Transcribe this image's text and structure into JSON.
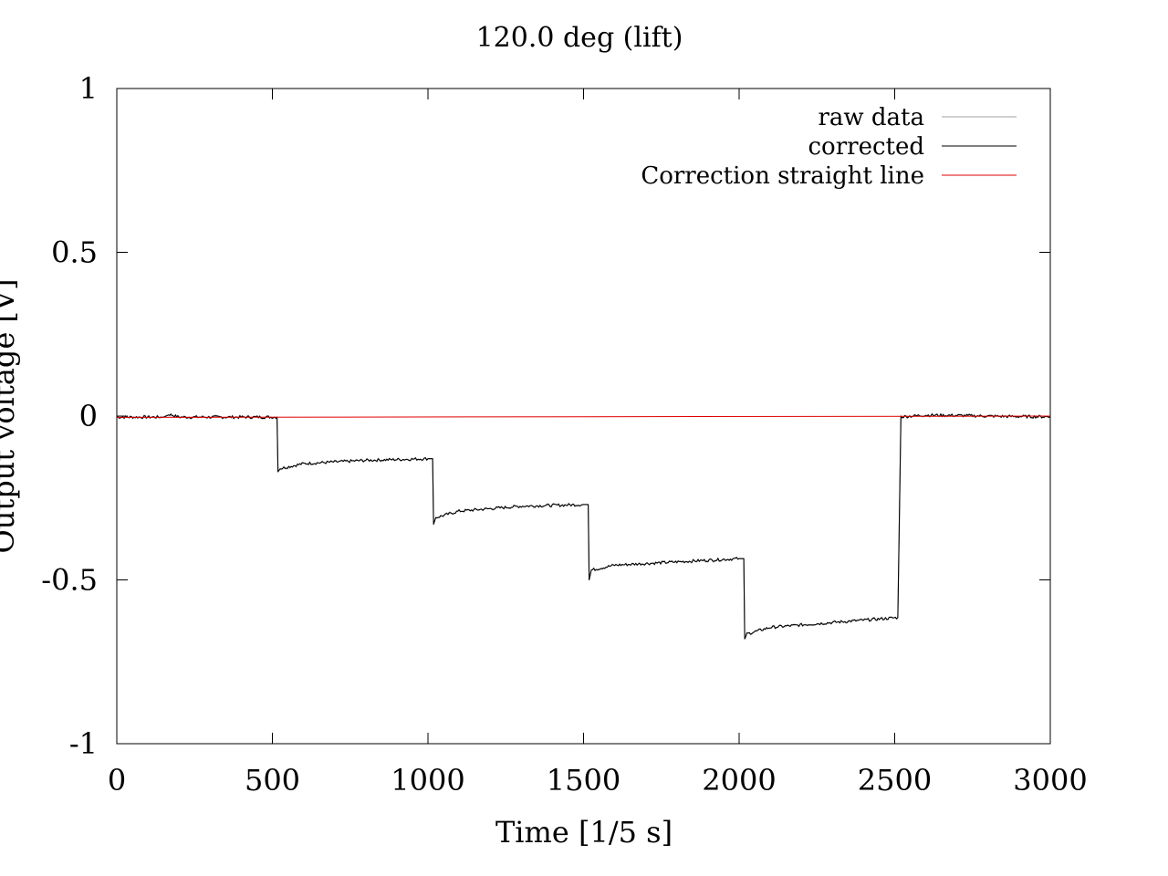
{
  "chart_data": {
    "type": "line",
    "title": "120.0 deg (lift)",
    "xlabel": "Time [1/5 s]",
    "ylabel": "Output voltage [V]",
    "xlim": [
      0,
      3000
    ],
    "ylim": [
      -1,
      1
    ],
    "x_ticks": [
      0,
      500,
      1000,
      1500,
      2000,
      2500,
      3000
    ],
    "x_tick_labels": [
      "0",
      "500",
      "1000",
      "1500",
      "2000",
      "2500",
      "3000"
    ],
    "y_ticks": [
      1,
      0.5,
      0,
      -0.5,
      -1
    ],
    "y_tick_labels": [
      "1",
      "0.5",
      "0",
      "-0.5",
      "-1"
    ],
    "grid": false,
    "legend_position": "top-right",
    "series": [
      {
        "name": "raw data",
        "color": "#a0a0a0",
        "x": [
          0,
          150,
          170,
          200,
          515,
          518,
          525,
          600,
          800,
          1000,
          1015,
          1018,
          1025,
          1100,
          1300,
          1500,
          1515,
          1518,
          1525,
          1600,
          1800,
          2000,
          2015,
          2018,
          2025,
          2100,
          2300,
          2510,
          2520,
          2600,
          2700,
          2850,
          3000
        ],
        "y": [
          -0.003,
          -0.003,
          0.005,
          -0.003,
          -0.003,
          -0.17,
          -0.16,
          -0.145,
          -0.135,
          -0.13,
          -0.13,
          -0.33,
          -0.31,
          -0.29,
          -0.275,
          -0.27,
          -0.27,
          -0.5,
          -0.47,
          -0.455,
          -0.445,
          -0.435,
          -0.435,
          -0.68,
          -0.665,
          -0.645,
          -0.63,
          -0.615,
          -0.002,
          0.003,
          0.002,
          -0.001,
          -0.002
        ]
      },
      {
        "name": "corrected",
        "color": "#000000",
        "x": [
          0,
          150,
          170,
          200,
          515,
          518,
          525,
          600,
          800,
          1000,
          1015,
          1018,
          1025,
          1100,
          1300,
          1500,
          1515,
          1518,
          1525,
          1600,
          1800,
          2000,
          2015,
          2018,
          2025,
          2100,
          2300,
          2510,
          2520,
          2600,
          2700,
          2850,
          3000
        ],
        "y": [
          -0.003,
          -0.003,
          0.005,
          -0.003,
          -0.003,
          -0.17,
          -0.16,
          -0.145,
          -0.135,
          -0.13,
          -0.13,
          -0.33,
          -0.31,
          -0.29,
          -0.275,
          -0.27,
          -0.27,
          -0.5,
          -0.47,
          -0.455,
          -0.445,
          -0.435,
          -0.435,
          -0.68,
          -0.665,
          -0.645,
          -0.63,
          -0.615,
          -0.002,
          0.003,
          0.002,
          -0.001,
          -0.002
        ]
      },
      {
        "name": "Correction straight line",
        "color": "#e00000",
        "x": [
          0,
          3000
        ],
        "y": [
          -0.004,
          0.0
        ]
      }
    ]
  }
}
